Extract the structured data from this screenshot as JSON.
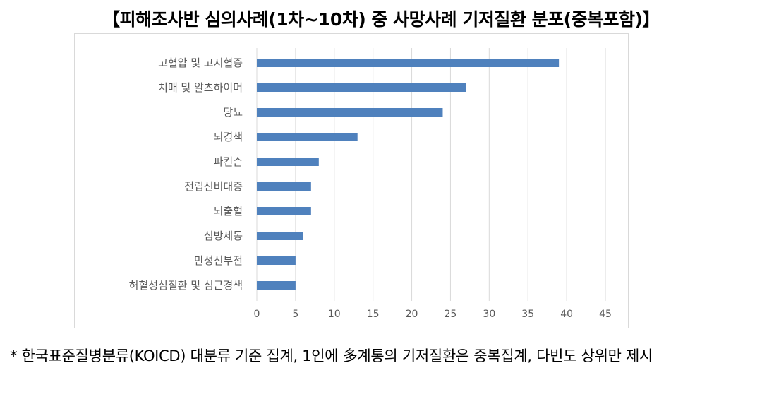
{
  "title": "【피해조사반 심의사례(1차~10차) 중 사망사례 기저질환 분포(중복포함)】",
  "note": "* 한국표준질병분류(KOICD) 대분류 기준 집계, 1인에 多계통의 기저질환은 중복집계, 다빈도 상위만 제시",
  "chart_data": {
    "type": "bar",
    "orientation": "horizontal",
    "categories": [
      "고혈압 및 고지혈증",
      "치매 및 알츠하이머",
      "당뇨",
      "뇌경색",
      "파킨슨",
      "전립선비대증",
      "뇌출혈",
      "심방세동",
      "만성신부전",
      "허혈성심질환 및 심근경색"
    ],
    "values": [
      39,
      27,
      24,
      13,
      8,
      7,
      7,
      6,
      5,
      5
    ],
    "xlim": [
      0,
      45
    ],
    "xticks": [
      0,
      5,
      10,
      15,
      20,
      25,
      30,
      35,
      40,
      45
    ],
    "grid": "vertical",
    "bar_color": "#4f81bd",
    "title": "",
    "xlabel": "",
    "ylabel": ""
  }
}
